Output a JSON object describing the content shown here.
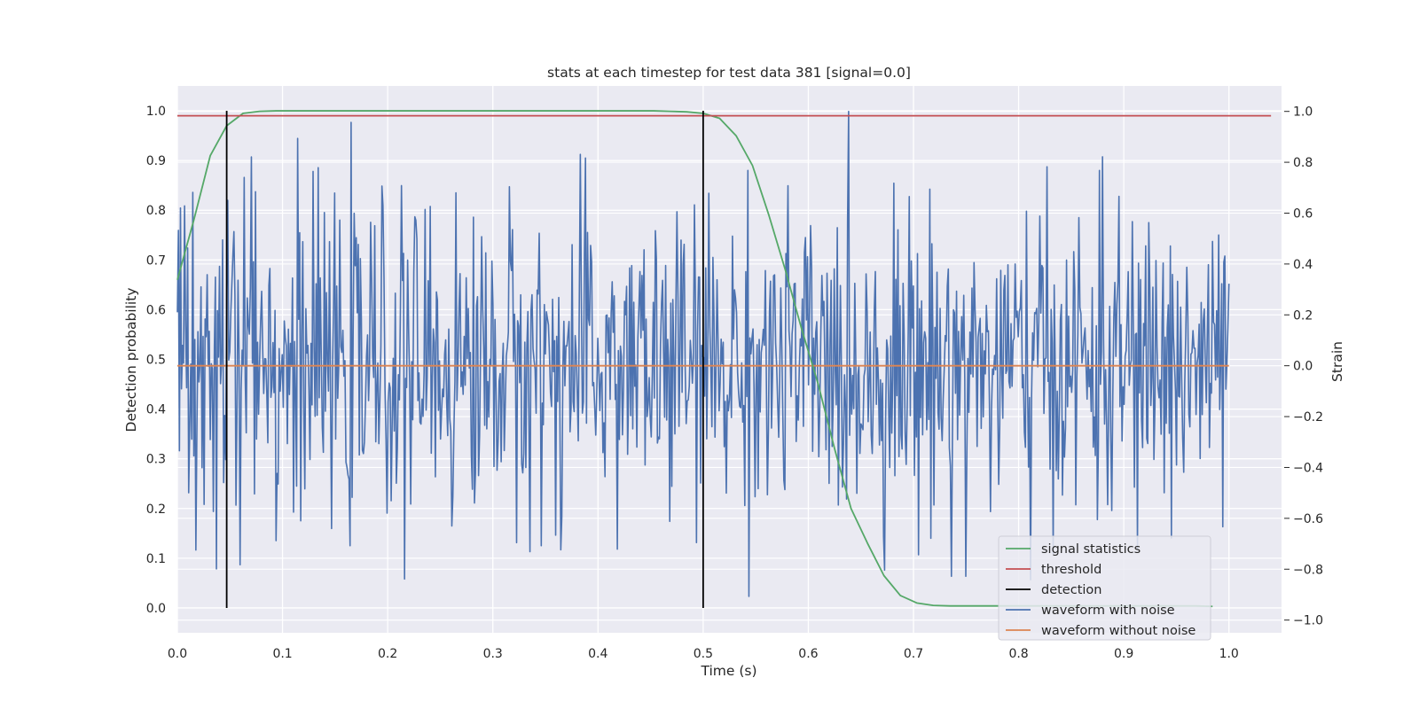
{
  "chart_data": {
    "type": "line",
    "title": "stats at each timestep for test data 381 [signal=0.0]",
    "xlabel": "Time (s)",
    "ylabel": "Detection probability",
    "y2label": "Strain",
    "xlim": [
      0.0,
      1.05
    ],
    "ylim": [
      -0.05,
      1.05
    ],
    "y2lim": [
      -1.05,
      1.1
    ],
    "xticks": [
      "0.0",
      "0.1",
      "0.2",
      "0.3",
      "0.4",
      "0.5",
      "0.6",
      "0.7",
      "0.8",
      "0.9",
      "1.0"
    ],
    "yticks": [
      "0.0",
      "0.1",
      "0.2",
      "0.3",
      "0.4",
      "0.5",
      "0.6",
      "0.7",
      "0.8",
      "0.9",
      "1.0"
    ],
    "y2ticks": [
      "−1.0",
      "−0.8",
      "−0.6",
      "−0.4",
      "−0.2",
      "0.0",
      "0.2",
      "0.4",
      "0.6",
      "0.8",
      "1.0"
    ],
    "grid": true,
    "legend_position": "lower-right",
    "legend": [
      "signal statistics",
      "threshold",
      "detection",
      "waveform with noise",
      "waveform without noise"
    ],
    "colors": {
      "signal_statistics": "#55a868",
      "threshold": "#c44e52",
      "detection": "#000000",
      "waveform_with_noise": "#4c72b0",
      "waveform_without_noise": "#dd8452",
      "plot_background": "#eaeaf2",
      "grid": "#ffffff"
    },
    "series": {
      "signal_statistics": {
        "axis": "left",
        "x": [
          0.0,
          0.0156,
          0.0313,
          0.0469,
          0.0625,
          0.0781,
          0.0938,
          0.1094,
          0.125,
          0.1406,
          0.1563,
          0.1719,
          0.1875,
          0.2031,
          0.2188,
          0.2344,
          0.25,
          0.2656,
          0.2813,
          0.2969,
          0.3125,
          0.3281,
          0.3438,
          0.3594,
          0.375,
          0.3906,
          0.4063,
          0.4219,
          0.4375,
          0.4531,
          0.4688,
          0.4844,
          0.5,
          0.5156,
          0.5313,
          0.5469,
          0.5625,
          0.5781,
          0.5938,
          0.6094,
          0.625,
          0.6406,
          0.6563,
          0.6719,
          0.6875,
          0.7031,
          0.7188,
          0.7344,
          0.75,
          0.7656,
          0.7813,
          0.7969,
          0.8125,
          0.8281,
          0.8438,
          0.8594,
          0.875,
          0.8906,
          0.9063,
          0.9219,
          0.9375,
          0.9531,
          0.9688,
          0.9844
        ],
        "y": [
          0.66,
          0.78,
          0.91,
          0.97,
          0.995,
          0.999,
          1.0,
          1.0,
          1.0,
          1.0,
          1.0,
          1.0,
          1.0,
          1.0,
          1.0,
          1.0,
          1.0,
          1.0,
          1.0,
          1.0,
          1.0,
          1.0,
          1.0,
          1.0,
          1.0,
          1.0,
          1.0,
          1.0,
          1.0,
          1.0,
          0.999,
          0.998,
          0.995,
          0.985,
          0.95,
          0.89,
          0.79,
          0.68,
          0.56,
          0.45,
          0.32,
          0.2,
          0.13,
          0.065,
          0.025,
          0.01,
          0.005,
          0.004,
          0.004,
          0.004,
          0.004,
          0.004,
          0.004,
          0.004,
          0.004,
          0.004,
          0.004,
          0.004,
          0.004,
          0.004,
          0.004,
          0.004,
          0.004,
          0.003
        ]
      },
      "threshold": {
        "axis": "left",
        "y": 0.99,
        "x_range": [
          0.0,
          1.04
        ]
      },
      "detection": {
        "axis": "left",
        "x": [
          0.0469,
          0.5
        ],
        "y_range": [
          0.0,
          1.0
        ]
      },
      "waveform_with_noise": {
        "axis": "right",
        "x_range": [
          0.0,
          1.0
        ],
        "samples": 1024,
        "std": 0.3,
        "min": -0.97,
        "max": 1.0
      },
      "waveform_without_noise": {
        "axis": "right",
        "x_range": [
          0.0,
          1.0
        ],
        "y": 0.0
      }
    }
  }
}
